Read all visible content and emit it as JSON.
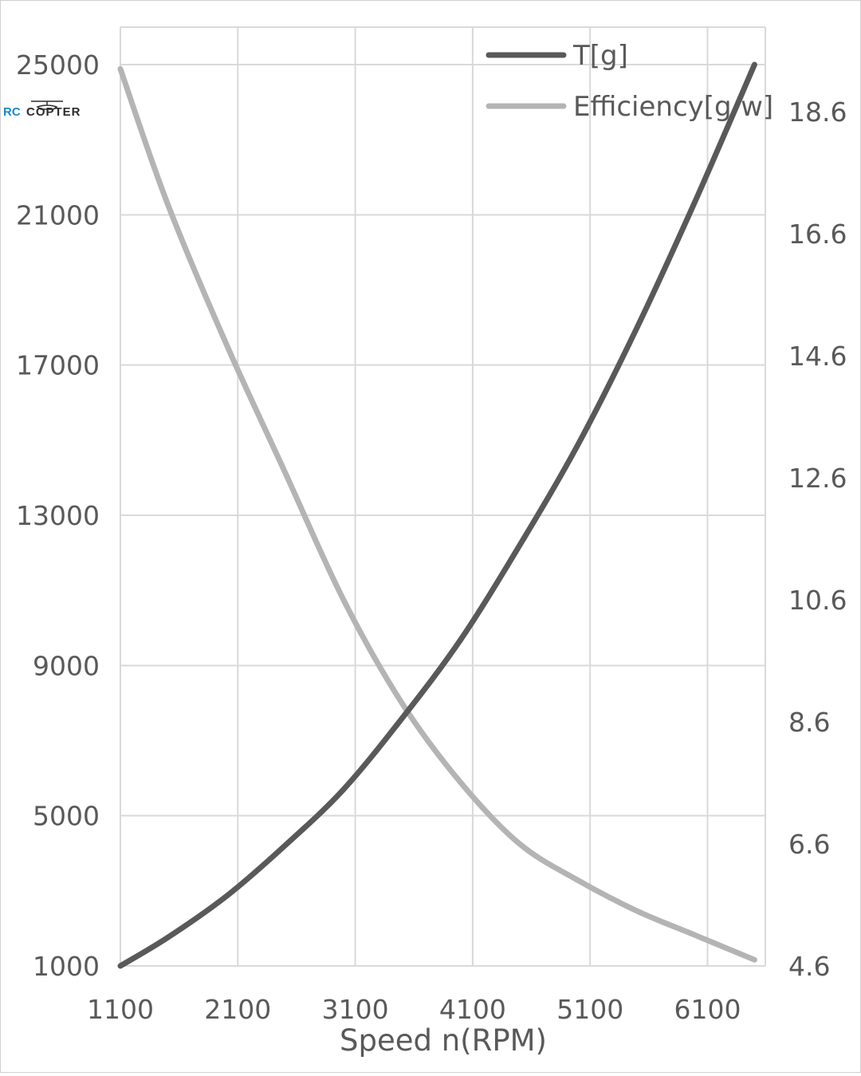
{
  "logo": {
    "part1": "RC",
    "part2": "COPTER"
  },
  "chart_data": {
    "type": "line",
    "title": "",
    "xlabel": "Speed n(RPM)",
    "ylabel": "",
    "y2label": "",
    "xlim": [
      1100,
      6500
    ],
    "ylim": [
      1000,
      25000
    ],
    "y2lim": [
      4.6,
      19.4
    ],
    "x_ticks": [
      "1100",
      "2100",
      "3100",
      "4100",
      "5100",
      "6100"
    ],
    "y_ticks": [
      "1000",
      "5000",
      "9000",
      "13000",
      "17000",
      "21000",
      "25000"
    ],
    "y2_ticks": [
      "4.6",
      "6.6",
      "8.6",
      "10.6",
      "12.6",
      "14.6",
      "16.6",
      "18.6"
    ],
    "grid": true,
    "legend_position": "top-right",
    "x": [
      1100,
      1500,
      2000,
      2500,
      3000,
      3500,
      4000,
      4500,
      5000,
      5500,
      6000,
      6500
    ],
    "series": [
      {
        "name": "T[g]",
        "axis": "left",
        "color": "#595959",
        "values": [
          1000,
          1750,
          2850,
          4200,
          5700,
          7600,
          9700,
          12200,
          14900,
          18000,
          21400,
          25000
        ]
      },
      {
        "name": "Efficiency[g/w]",
        "axis": "right",
        "color": "#b4b4b4",
        "values": [
          19.3,
          17.1,
          14.8,
          12.7,
          10.6,
          8.9,
          7.6,
          6.6,
          6.0,
          5.5,
          5.1,
          4.7
        ]
      }
    ]
  }
}
